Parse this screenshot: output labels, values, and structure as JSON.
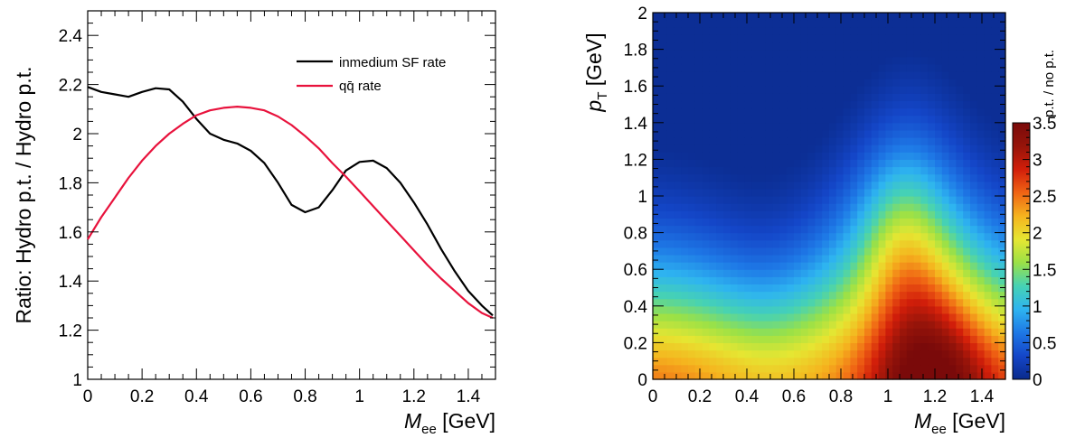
{
  "chart_data": [
    {
      "type": "line",
      "xlabel": {
        "main": "M",
        "sub": "ee",
        "unit": " [GeV]"
      },
      "ylabel": "Ratio: Hydro p.t. / Hydro p.t.",
      "xlim": [
        0,
        1.5
      ],
      "ylim": [
        1,
        2.5
      ],
      "xticks": [
        0,
        0.2,
        0.4,
        0.6,
        0.8,
        1,
        1.2,
        1.4
      ],
      "xtick_labels": [
        "0",
        "0.2",
        "0.4",
        "0.6",
        "0.8",
        "1",
        "1.2",
        "1.4"
      ],
      "yticks": [
        1,
        1.2,
        1.4,
        1.6,
        1.8,
        2,
        2.2,
        2.4
      ],
      "ytick_labels": [
        "1",
        "1.2",
        "1.4",
        "1.6",
        "1.8",
        "2",
        "2.2",
        "2.4"
      ],
      "grid": false,
      "legend_position": "top-right",
      "series": [
        {
          "name": "inmedium SF rate",
          "color": "#000000",
          "x": [
            0,
            0.05,
            0.1,
            0.15,
            0.2,
            0.25,
            0.3,
            0.35,
            0.4,
            0.45,
            0.5,
            0.55,
            0.6,
            0.65,
            0.7,
            0.75,
            0.8,
            0.85,
            0.9,
            0.95,
            1.0,
            1.05,
            1.1,
            1.15,
            1.2,
            1.25,
            1.3,
            1.35,
            1.4,
            1.45,
            1.49
          ],
          "y": [
            2.19,
            2.17,
            2.16,
            2.15,
            2.17,
            2.185,
            2.18,
            2.13,
            2.06,
            2.0,
            1.975,
            1.96,
            1.93,
            1.88,
            1.8,
            1.71,
            1.68,
            1.7,
            1.77,
            1.85,
            1.885,
            1.89,
            1.86,
            1.8,
            1.72,
            1.63,
            1.53,
            1.44,
            1.36,
            1.3,
            1.26
          ]
        },
        {
          "name": "qq̄ rate",
          "color": "#e8123c",
          "x": [
            0,
            0.05,
            0.1,
            0.15,
            0.2,
            0.25,
            0.3,
            0.35,
            0.4,
            0.45,
            0.5,
            0.55,
            0.6,
            0.65,
            0.7,
            0.75,
            0.8,
            0.85,
            0.9,
            0.95,
            1.0,
            1.05,
            1.1,
            1.15,
            1.2,
            1.25,
            1.3,
            1.35,
            1.4,
            1.45,
            1.49
          ],
          "y": [
            1.57,
            1.66,
            1.74,
            1.82,
            1.89,
            1.95,
            2.0,
            2.04,
            2.075,
            2.095,
            2.105,
            2.11,
            2.105,
            2.095,
            2.07,
            2.035,
            1.99,
            1.94,
            1.88,
            1.825,
            1.765,
            1.705,
            1.645,
            1.585,
            1.525,
            1.465,
            1.41,
            1.36,
            1.31,
            1.27,
            1.25
          ]
        }
      ]
    },
    {
      "type": "heatmap",
      "xlabel": {
        "main": "M",
        "sub": "ee",
        "unit": " [GeV]"
      },
      "ylabel": {
        "main": "p",
        "sub": "T",
        "unit": " [GeV]"
      },
      "xlim": [
        0,
        1.5
      ],
      "ylim": [
        0,
        2
      ],
      "xticks": [
        0,
        0.2,
        0.4,
        0.6,
        0.8,
        1,
        1.2,
        1.4
      ],
      "xtick_labels": [
        "0",
        "0.2",
        "0.4",
        "0.6",
        "0.8",
        "1",
        "1.2",
        "1.4"
      ],
      "yticks": [
        0,
        0.2,
        0.4,
        0.6,
        0.8,
        1,
        1.2,
        1.4,
        1.6,
        1.8,
        2
      ],
      "ytick_labels": [
        "0",
        "0.2",
        "0.4",
        "0.6",
        "0.8",
        "1",
        "1.2",
        "1.4",
        "1.6",
        "1.8",
        "2"
      ],
      "zlim": [
        0,
        3.5
      ],
      "zticks": [
        0,
        0.5,
        1,
        1.5,
        2,
        2.5,
        3,
        3.5
      ],
      "ztick_labels": [
        "0",
        "0.5",
        "1",
        "1.5",
        "2",
        "2.5",
        "3",
        "3.5"
      ],
      "colorbar_title": "p.t. / no p.t.",
      "colorscale": [
        "#0a2a8c",
        "#1446c8",
        "#1e78e6",
        "#2eb4f0",
        "#46d2b4",
        "#9be146",
        "#e6e632",
        "#f5b41e",
        "#f06414",
        "#d21e0a",
        "#96140a",
        "#7a0a0a"
      ],
      "grid": {
        "nx": 50,
        "ny": 50,
        "dx": 0.03,
        "dy": 0.04
      }
    }
  ]
}
